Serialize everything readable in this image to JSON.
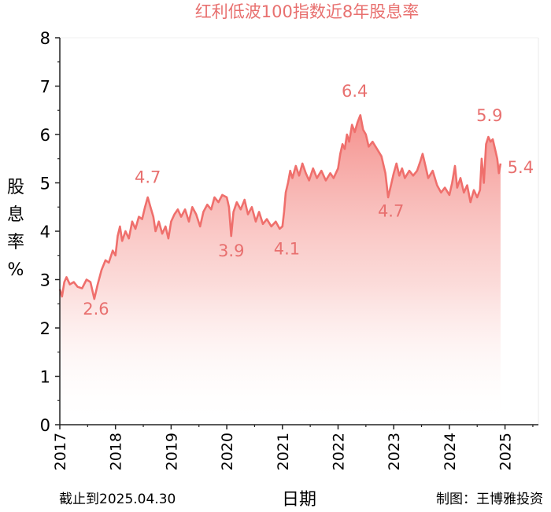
{
  "chart_data": {
    "type": "area",
    "title": "红利低波100指数近8年股息率",
    "xlabel": "日期",
    "ylabel": "股息率%",
    "ylabel_chars": [
      "股",
      "息",
      "率",
      "%"
    ],
    "ylim": [
      0,
      8
    ],
    "yticks": [
      "0",
      "1",
      "2",
      "3",
      "4",
      "5",
      "6",
      "7",
      "8"
    ],
    "xlim": [
      2017.0,
      2025.6
    ],
    "xticks": [
      {
        "label": "2017",
        "value": 2017
      },
      {
        "label": "2018",
        "value": 2018
      },
      {
        "label": "2019",
        "value": 2019
      },
      {
        "label": "2020",
        "value": 2020
      },
      {
        "label": "2021",
        "value": 2021
      },
      {
        "label": "2022",
        "value": 2022
      },
      {
        "label": "2023",
        "value": 2023
      },
      {
        "label": "2024",
        "value": 2024
      },
      {
        "label": "2025",
        "value": 2025
      }
    ],
    "line_color": "#ef6f6c",
    "fill_color_top": "#f48a86",
    "grid": false,
    "series": [
      {
        "points": [
          [
            2017.0,
            2.8
          ],
          [
            2017.04,
            2.65
          ],
          [
            2017.08,
            2.95
          ],
          [
            2017.12,
            3.05
          ],
          [
            2017.18,
            2.9
          ],
          [
            2017.25,
            2.95
          ],
          [
            2017.32,
            2.85
          ],
          [
            2017.4,
            2.82
          ],
          [
            2017.48,
            3.0
          ],
          [
            2017.55,
            2.95
          ],
          [
            2017.62,
            2.6
          ],
          [
            2017.68,
            2.9
          ],
          [
            2017.75,
            3.2
          ],
          [
            2017.82,
            3.4
          ],
          [
            2017.88,
            3.35
          ],
          [
            2017.95,
            3.6
          ],
          [
            2018.0,
            3.5
          ],
          [
            2018.04,
            3.9
          ],
          [
            2018.08,
            4.1
          ],
          [
            2018.12,
            3.8
          ],
          [
            2018.18,
            4.0
          ],
          [
            2018.24,
            3.85
          ],
          [
            2018.3,
            4.2
          ],
          [
            2018.36,
            4.05
          ],
          [
            2018.42,
            4.3
          ],
          [
            2018.48,
            4.25
          ],
          [
            2018.53,
            4.5
          ],
          [
            2018.58,
            4.7
          ],
          [
            2018.63,
            4.5
          ],
          [
            2018.68,
            4.3
          ],
          [
            2018.72,
            4.0
          ],
          [
            2018.78,
            4.2
          ],
          [
            2018.84,
            3.95
          ],
          [
            2018.9,
            4.1
          ],
          [
            2018.95,
            3.85
          ],
          [
            2019.0,
            4.2
          ],
          [
            2019.06,
            4.35
          ],
          [
            2019.12,
            4.45
          ],
          [
            2019.18,
            4.3
          ],
          [
            2019.25,
            4.45
          ],
          [
            2019.32,
            4.2
          ],
          [
            2019.38,
            4.5
          ],
          [
            2019.45,
            4.35
          ],
          [
            2019.52,
            4.1
          ],
          [
            2019.58,
            4.4
          ],
          [
            2019.65,
            4.55
          ],
          [
            2019.72,
            4.45
          ],
          [
            2019.78,
            4.7
          ],
          [
            2019.85,
            4.6
          ],
          [
            2019.92,
            4.75
          ],
          [
            2020.0,
            4.7
          ],
          [
            2020.04,
            4.5
          ],
          [
            2020.08,
            3.9
          ],
          [
            2020.12,
            4.4
          ],
          [
            2020.18,
            4.6
          ],
          [
            2020.25,
            4.45
          ],
          [
            2020.32,
            4.65
          ],
          [
            2020.38,
            4.35
          ],
          [
            2020.45,
            4.5
          ],
          [
            2020.52,
            4.2
          ],
          [
            2020.58,
            4.4
          ],
          [
            2020.65,
            4.15
          ],
          [
            2020.72,
            4.25
          ],
          [
            2020.8,
            4.1
          ],
          [
            2020.88,
            4.2
          ],
          [
            2020.95,
            4.05
          ],
          [
            2021.0,
            4.1
          ],
          [
            2021.03,
            4.4
          ],
          [
            2021.06,
            4.8
          ],
          [
            2021.1,
            5.0
          ],
          [
            2021.14,
            5.25
          ],
          [
            2021.18,
            5.1
          ],
          [
            2021.24,
            5.35
          ],
          [
            2021.3,
            5.15
          ],
          [
            2021.36,
            5.4
          ],
          [
            2021.42,
            5.2
          ],
          [
            2021.48,
            5.05
          ],
          [
            2021.55,
            5.3
          ],
          [
            2021.62,
            5.1
          ],
          [
            2021.7,
            5.25
          ],
          [
            2021.78,
            5.05
          ],
          [
            2021.86,
            5.2
          ],
          [
            2021.92,
            5.1
          ],
          [
            2022.0,
            5.3
          ],
          [
            2022.04,
            5.6
          ],
          [
            2022.08,
            5.8
          ],
          [
            2022.12,
            5.7
          ],
          [
            2022.16,
            6.0
          ],
          [
            2022.2,
            5.85
          ],
          [
            2022.25,
            6.2
          ],
          [
            2022.3,
            6.05
          ],
          [
            2022.35,
            6.25
          ],
          [
            2022.4,
            6.4
          ],
          [
            2022.45,
            6.1
          ],
          [
            2022.5,
            6.0
          ],
          [
            2022.55,
            5.75
          ],
          [
            2022.62,
            5.85
          ],
          [
            2022.7,
            5.7
          ],
          [
            2022.78,
            5.55
          ],
          [
            2022.85,
            5.2
          ],
          [
            2022.9,
            4.7
          ],
          [
            2022.95,
            4.95
          ],
          [
            2023.0,
            5.2
          ],
          [
            2023.05,
            5.4
          ],
          [
            2023.1,
            5.15
          ],
          [
            2023.15,
            5.3
          ],
          [
            2023.2,
            5.1
          ],
          [
            2023.28,
            5.25
          ],
          [
            2023.35,
            5.15
          ],
          [
            2023.42,
            5.25
          ],
          [
            2023.48,
            5.45
          ],
          [
            2023.52,
            5.6
          ],
          [
            2023.56,
            5.4
          ],
          [
            2023.62,
            5.1
          ],
          [
            2023.7,
            5.25
          ],
          [
            2023.78,
            4.95
          ],
          [
            2023.85,
            4.8
          ],
          [
            2023.92,
            4.9
          ],
          [
            2024.0,
            4.75
          ],
          [
            2024.05,
            5.0
          ],
          [
            2024.1,
            5.35
          ],
          [
            2024.14,
            4.9
          ],
          [
            2024.2,
            5.1
          ],
          [
            2024.26,
            4.8
          ],
          [
            2024.32,
            4.95
          ],
          [
            2024.38,
            4.6
          ],
          [
            2024.44,
            4.85
          ],
          [
            2024.5,
            4.7
          ],
          [
            2024.55,
            4.85
          ],
          [
            2024.58,
            5.5
          ],
          [
            2024.62,
            5.0
          ],
          [
            2024.66,
            5.8
          ],
          [
            2024.7,
            5.95
          ],
          [
            2024.74,
            5.85
          ],
          [
            2024.78,
            5.9
          ],
          [
            2024.82,
            5.7
          ],
          [
            2024.86,
            5.5
          ],
          [
            2024.89,
            5.2
          ],
          [
            2024.92,
            5.4
          ]
        ]
      }
    ],
    "annotations": [
      {
        "text": "2.6",
        "x": 2017.65,
        "y": 2.28
      },
      {
        "text": "4.7",
        "x": 2018.58,
        "y": 5.0
      },
      {
        "text": "3.9",
        "x": 2020.08,
        "y": 3.48
      },
      {
        "text": "4.1",
        "x": 2021.08,
        "y": 3.52
      },
      {
        "text": "6.4",
        "x": 2022.3,
        "y": 6.78
      },
      {
        "text": "4.7",
        "x": 2022.95,
        "y": 4.3
      },
      {
        "text": "5.9",
        "x": 2024.72,
        "y": 6.28
      },
      {
        "text": "5.4",
        "x": 2025.28,
        "y": 5.2
      }
    ]
  },
  "footer": {
    "cutoff_note": "截止到2025.04.30",
    "credit": "制图：王博雅投资"
  }
}
